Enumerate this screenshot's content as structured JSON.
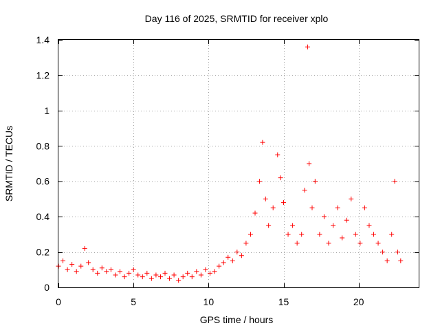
{
  "chart_data": {
    "type": "scatter",
    "title": "Day 116 of 2025, SRMTID for receiver xplo",
    "xlabel": "GPS time / hours",
    "ylabel": "SRMTID / TECUs",
    "xlim": [
      0,
      24
    ],
    "ylim": [
      0,
      1.4
    ],
    "grid": true,
    "marker": "+",
    "x_ticks": [
      0,
      5,
      10,
      15,
      20
    ],
    "x_tick_labels": [
      "0",
      "5",
      "10",
      "15",
      "20"
    ],
    "y_ticks": [
      0,
      0.2,
      0.4,
      0.6,
      0.8,
      1.0,
      1.2,
      1.4
    ],
    "y_tick_labels": [
      "0",
      "0.2",
      "0.4",
      "0.6",
      "0.8",
      "1",
      "1.2",
      "1.4"
    ],
    "series": [
      {
        "name": "SRMTID",
        "color": "#ff0000",
        "x": [
          0.0,
          0.3,
          0.6,
          0.9,
          1.2,
          1.5,
          1.75,
          2.0,
          2.3,
          2.6,
          2.9,
          3.2,
          3.5,
          3.8,
          4.1,
          4.4,
          4.7,
          5.0,
          5.3,
          5.6,
          5.9,
          6.2,
          6.5,
          6.8,
          7.1,
          7.4,
          7.7,
          8.0,
          8.3,
          8.6,
          8.9,
          9.2,
          9.5,
          9.8,
          10.1,
          10.4,
          10.7,
          11.0,
          11.3,
          11.6,
          11.9,
          12.2,
          12.5,
          12.8,
          13.1,
          13.4,
          13.6,
          13.8,
          14.0,
          14.3,
          14.6,
          14.8,
          15.0,
          15.3,
          15.6,
          15.9,
          16.2,
          16.4,
          16.6,
          16.7,
          16.9,
          17.1,
          17.4,
          17.7,
          18.0,
          18.3,
          18.6,
          18.9,
          19.2,
          19.5,
          19.8,
          20.1,
          20.4,
          20.7,
          21.0,
          21.3,
          21.6,
          21.9,
          22.2,
          22.4,
          22.6,
          22.8
        ],
        "y": [
          0.12,
          0.15,
          0.1,
          0.13,
          0.09,
          0.12,
          0.22,
          0.14,
          0.1,
          0.08,
          0.11,
          0.09,
          0.1,
          0.07,
          0.09,
          0.06,
          0.08,
          0.1,
          0.07,
          0.06,
          0.08,
          0.05,
          0.07,
          0.06,
          0.08,
          0.05,
          0.07,
          0.04,
          0.06,
          0.08,
          0.06,
          0.09,
          0.07,
          0.1,
          0.08,
          0.09,
          0.12,
          0.14,
          0.17,
          0.15,
          0.2,
          0.18,
          0.25,
          0.3,
          0.42,
          0.6,
          0.82,
          0.5,
          0.35,
          0.45,
          0.75,
          0.62,
          0.48,
          0.3,
          0.35,
          0.25,
          0.3,
          0.55,
          1.36,
          0.7,
          0.45,
          0.6,
          0.3,
          0.4,
          0.25,
          0.35,
          0.45,
          0.28,
          0.38,
          0.5,
          0.3,
          0.25,
          0.45,
          0.35,
          0.3,
          0.25,
          0.2,
          0.15,
          0.3,
          0.6,
          0.2,
          0.15
        ]
      }
    ]
  }
}
